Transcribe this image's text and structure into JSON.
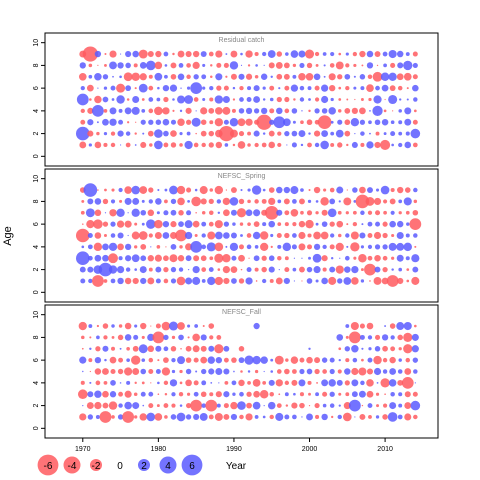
{
  "colors": {
    "negative": "#FF5A5F",
    "positive": "#5A5AFF",
    "frame": "#000000",
    "panel_title": "#888888"
  },
  "chart_data": [
    {
      "type": "scatter",
      "title": "Residual catch",
      "xlabel": "Year",
      "ylabel": "Age",
      "xlim": [
        1965,
        2017
      ],
      "ylim": [
        -0.5,
        10.5
      ],
      "yticks": [
        0,
        2,
        4,
        6,
        8,
        10
      ],
      "xticks": [
        1970,
        1980,
        1990,
        2000,
        2010
      ],
      "grid": false,
      "years": [
        1970,
        2014
      ],
      "ages": [
        1,
        9
      ],
      "notable_residuals": [
        {
          "year": 1971,
          "age": 9,
          "value": -5
        },
        {
          "year": 1970,
          "age": 2,
          "value": 4
        },
        {
          "year": 1989,
          "age": 2,
          "value": -5
        },
        {
          "year": 1994,
          "age": 3,
          "value": -5
        },
        {
          "year": 2002,
          "age": 3,
          "value": -4
        },
        {
          "year": 1970,
          "age": 5,
          "value": 3
        },
        {
          "year": 1972,
          "age": 4,
          "value": 3
        },
        {
          "year": 1985,
          "age": 6,
          "value": 3
        },
        {
          "year": 1996,
          "age": 3,
          "value": 3
        },
        {
          "year": 2014,
          "age": 2,
          "value": 2
        }
      ],
      "seed": 11
    },
    {
      "type": "scatter",
      "title": "NEFSC_Spring",
      "xlabel": "Year",
      "ylabel": "Age",
      "xlim": [
        1965,
        2017
      ],
      "ylim": [
        -0.5,
        10.5
      ],
      "yticks": [
        0,
        2,
        4,
        6,
        8,
        10
      ],
      "xticks": [
        1970,
        1980,
        1990,
        2000,
        2010
      ],
      "grid": false,
      "years": [
        1970,
        2014
      ],
      "ages": [
        1,
        9
      ],
      "notable_residuals": [
        {
          "year": 1971,
          "age": 9,
          "value": 4
        },
        {
          "year": 1970,
          "age": 5,
          "value": -4
        },
        {
          "year": 1970,
          "age": 3,
          "value": 4
        },
        {
          "year": 1973,
          "age": 2,
          "value": 4
        },
        {
          "year": 1972,
          "age": 1,
          "value": -3
        },
        {
          "year": 1995,
          "age": 7,
          "value": -4
        },
        {
          "year": 2007,
          "age": 8,
          "value": -4
        },
        {
          "year": 1983,
          "age": 5,
          "value": -3
        },
        {
          "year": 1985,
          "age": 4,
          "value": 3
        },
        {
          "year": 2008,
          "age": 2,
          "value": -3
        },
        {
          "year": 2014,
          "age": 6,
          "value": -3
        },
        {
          "year": 2011,
          "age": 1,
          "value": -3
        }
      ],
      "seed": 29
    },
    {
      "type": "scatter",
      "title": "NEFSC_Fall",
      "xlabel": "Year",
      "ylabel": "Age",
      "xlim": [
        1965,
        2017
      ],
      "ylim": [
        -0.5,
        10.5
      ],
      "yticks": [
        0,
        2,
        4,
        6,
        8,
        10
      ],
      "xticks": [
        1970,
        1980,
        1990,
        2000,
        2010
      ],
      "grid": false,
      "years": [
        1970,
        2014
      ],
      "ages": [
        1,
        9
      ],
      "missing": [
        {
          "age": 9,
          "years": [
            1988,
            2010
          ]
        },
        {
          "age": 8,
          "years": [
            1988,
            2003
          ]
        },
        {
          "age": 7,
          "years": [
            1990,
            2003
          ]
        }
      ],
      "notable_residuals": [
        {
          "year": 1973,
          "age": 1,
          "value": -3
        },
        {
          "year": 1976,
          "age": 1,
          "value": -3
        },
        {
          "year": 1980,
          "age": 8,
          "value": -3
        },
        {
          "year": 1985,
          "age": 2,
          "value": -3
        },
        {
          "year": 1987,
          "age": 2,
          "value": -3
        },
        {
          "year": 2006,
          "age": 8,
          "value": -3
        },
        {
          "year": 2013,
          "age": 4,
          "value": -3
        },
        {
          "year": 1970,
          "age": 3,
          "value": -2
        },
        {
          "year": 2006,
          "age": 2,
          "value": 3
        },
        {
          "year": 2011,
          "age": 1,
          "value": 2
        }
      ],
      "seed": 47
    }
  ],
  "legend": {
    "values": [
      -6,
      -4,
      -2,
      0,
      2,
      4,
      6
    ],
    "labels": [
      "-6",
      "-4",
      "-2",
      "0",
      "2",
      "4",
      "6"
    ],
    "x_label": "Year"
  },
  "axis_text": {
    "ylabel": "Age",
    "xtick_labels": [
      "1970",
      "1980",
      "1990",
      "2000",
      "2010"
    ],
    "ytick_labels": [
      "0",
      "2",
      "4",
      "6",
      "8",
      "10"
    ]
  }
}
